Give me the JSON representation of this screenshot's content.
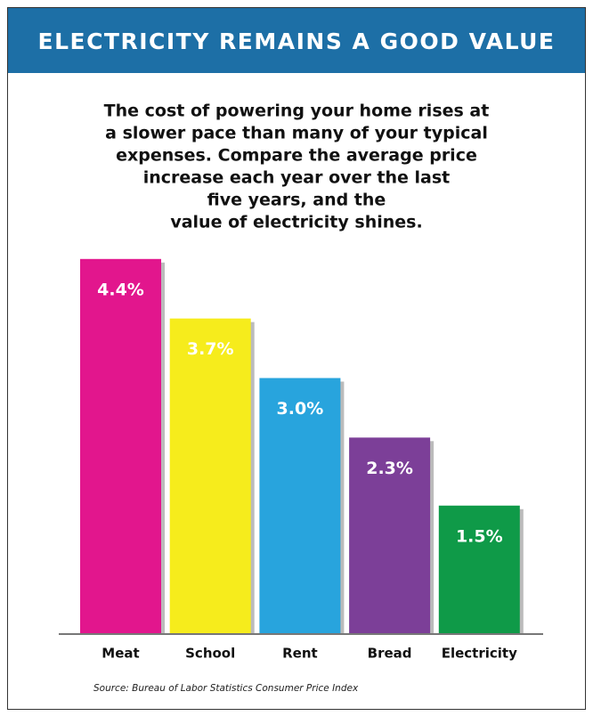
{
  "chart_data": {
    "type": "bar",
    "title": "ELECTRICITY REMAINS A GOOD VALUE",
    "subtitle": [
      "The cost of powering your home rises at",
      "a slower pace than many of your typical",
      "expenses. Compare the average price",
      "increase each year over the last",
      "five years, and the",
      "value of electricity shines."
    ],
    "categories": [
      "Meat",
      "School",
      "Rent",
      "Bread",
      "Electricity"
    ],
    "values": [
      4.4,
      3.7,
      3.0,
      2.3,
      1.5
    ],
    "value_labels": [
      "4.4%",
      "3.7%",
      "3.0%",
      "2.3%",
      "1.5%"
    ],
    "colors": [
      "#e2168d",
      "#f6ec1c",
      "#28a4dd",
      "#7c3f98",
      "#0f9a48"
    ],
    "source": "Source: Bureau of Labor Statistics Consumer Price Index"
  }
}
